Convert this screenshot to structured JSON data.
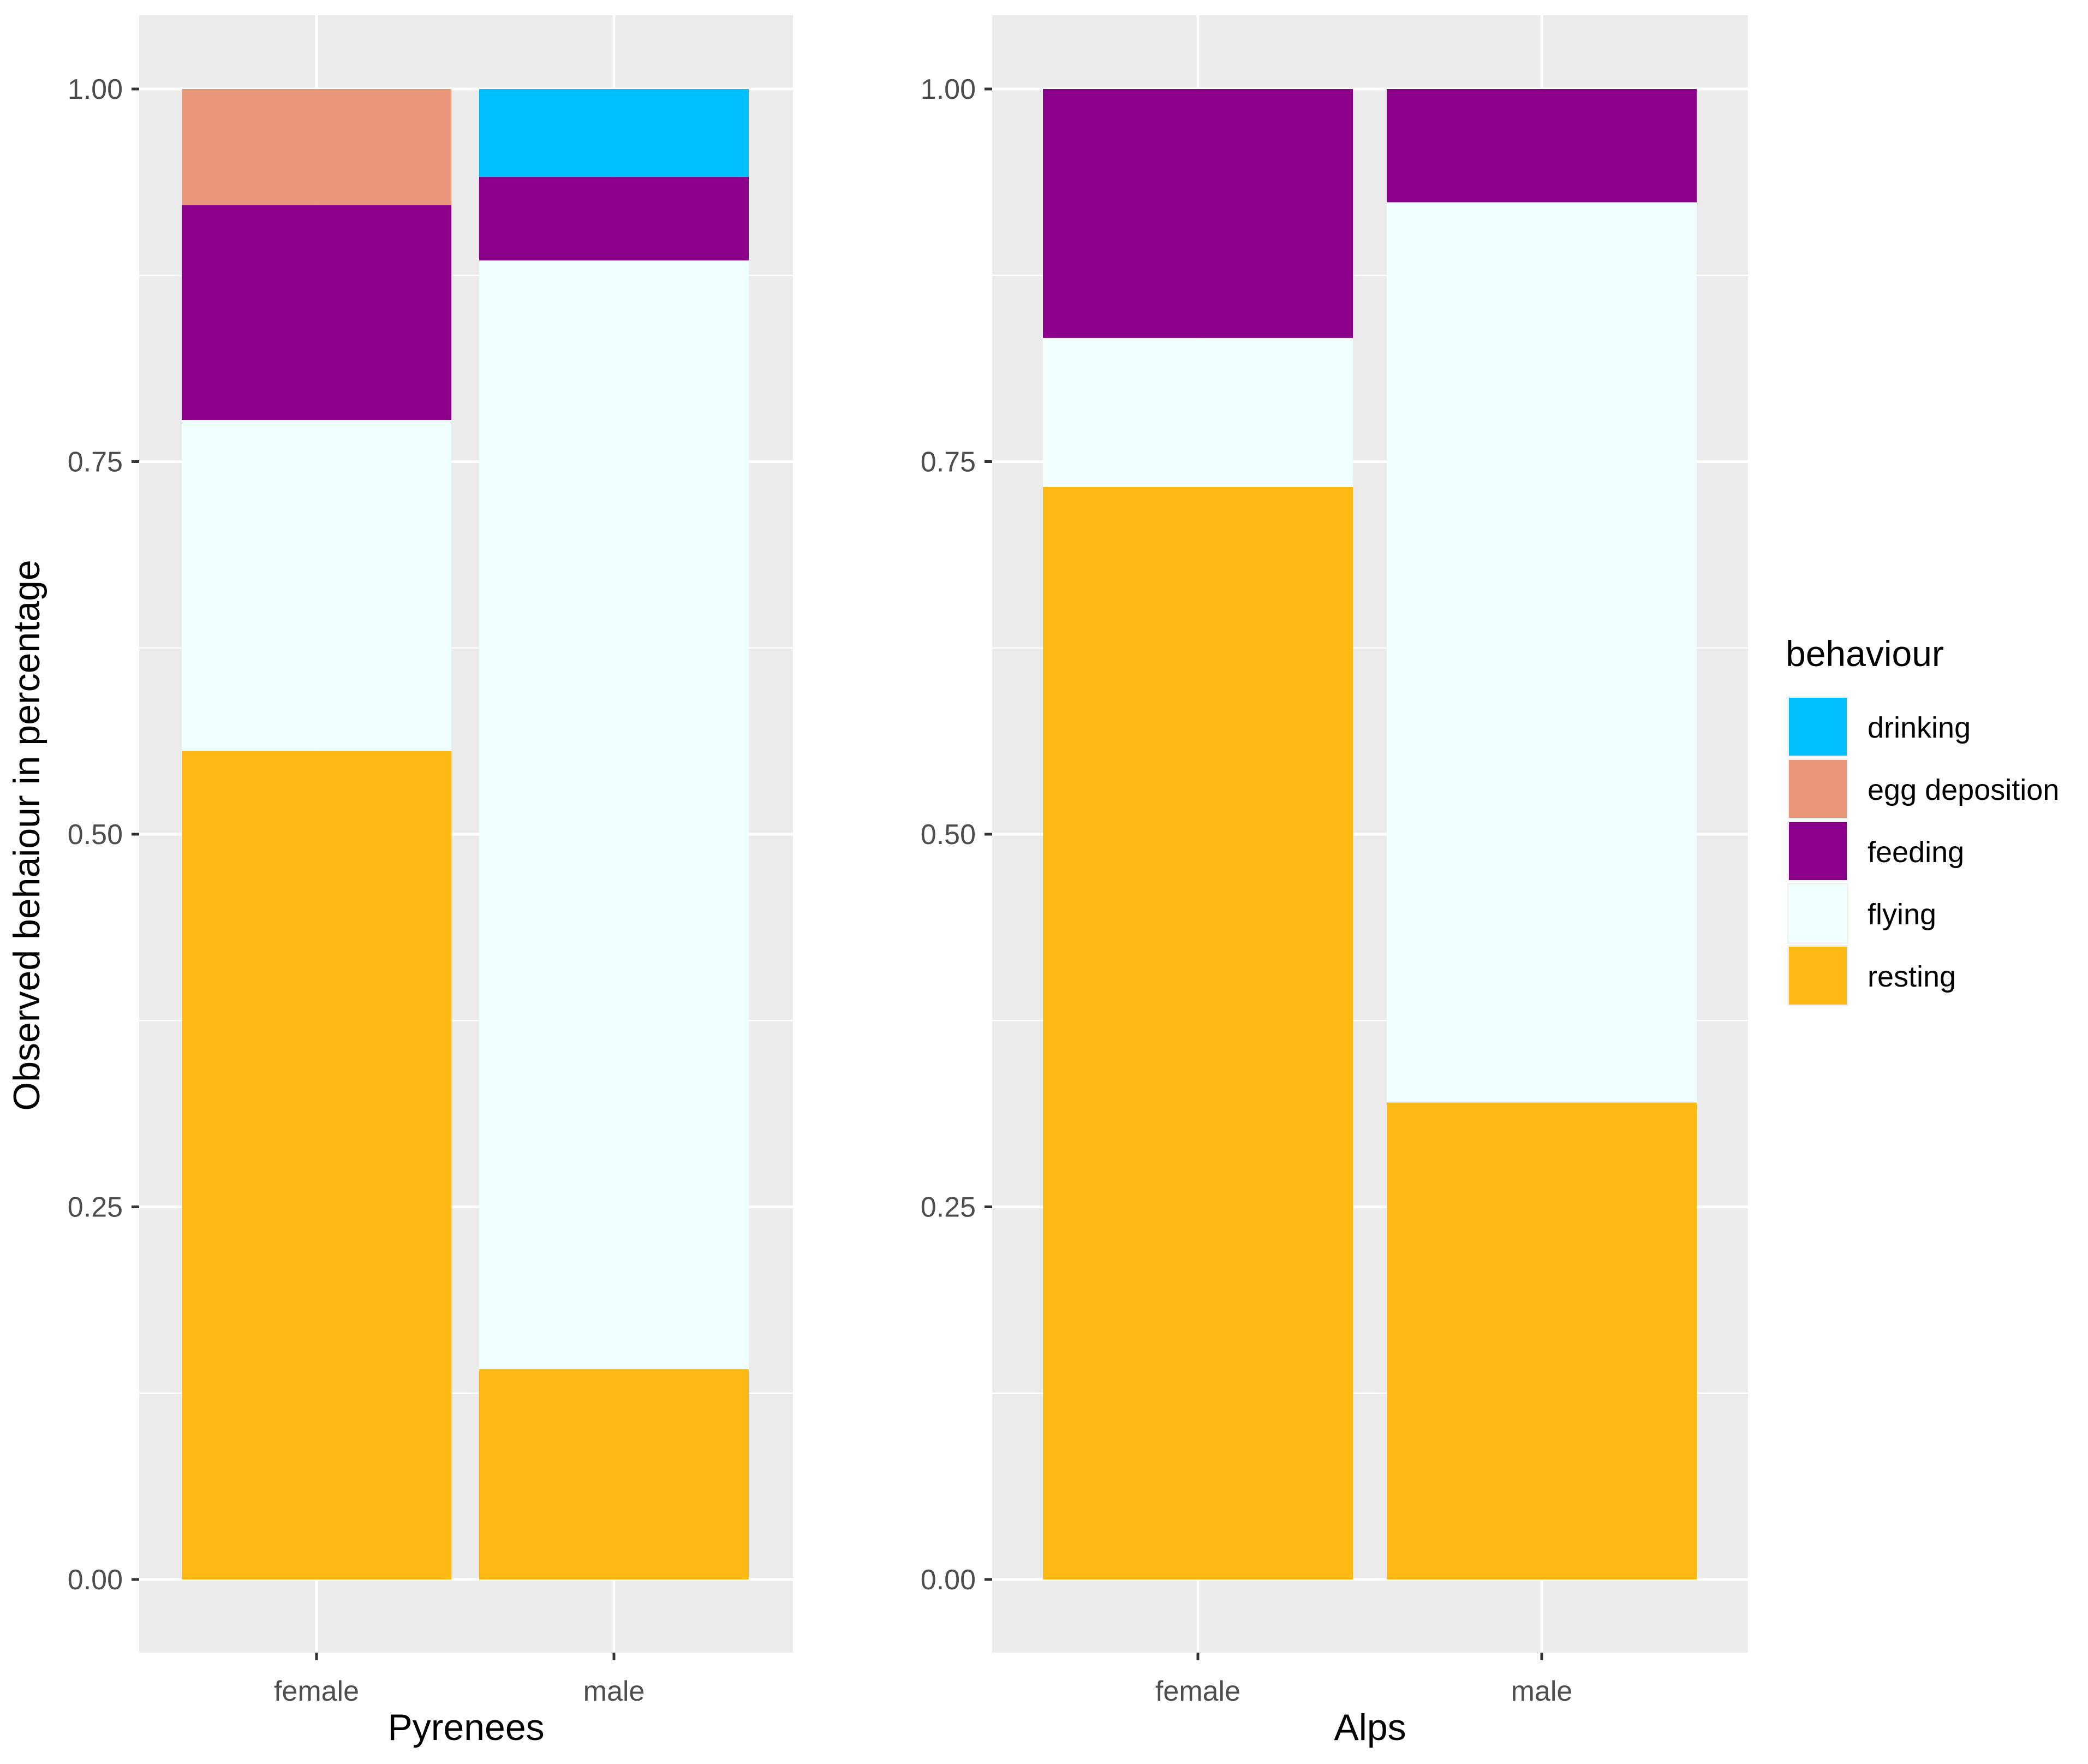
{
  "chart_data": {
    "type": "bar",
    "stacked": true,
    "ylabel": "Observed behaiour in percentage",
    "ylim": [
      -0.1,
      1.05
    ],
    "yticks": [
      "0.00",
      "0.25",
      "0.50",
      "0.75",
      "1.00"
    ],
    "legend": {
      "title": "behaviour",
      "position": "right",
      "entries": [
        "drinking",
        "egg deposition",
        "feeding",
        "flying",
        "resting"
      ]
    },
    "colors": {
      "drinking": "#00BFFF",
      "egg deposition": "#E9967A",
      "feeding": "#8B008B",
      "flying": "#F0FFFF",
      "resting": "#FDB813"
    },
    "panels": [
      {
        "xlabel": "Pyrenees",
        "categories": [
          "female",
          "male"
        ],
        "series": [
          {
            "name": "resting",
            "values": [
              0.556,
              0.141
            ]
          },
          {
            "name": "flying",
            "values": [
              0.222,
              0.744
            ]
          },
          {
            "name": "feeding",
            "values": [
              0.144,
              0.056
            ]
          },
          {
            "name": "egg deposition",
            "values": [
              0.078,
              0
            ]
          },
          {
            "name": "drinking",
            "values": [
              0,
              0.059
            ]
          }
        ]
      },
      {
        "xlabel": "Alps",
        "categories": [
          "female",
          "male"
        ],
        "series": [
          {
            "name": "resting",
            "values": [
              0.733,
              0.32
            ]
          },
          {
            "name": "flying",
            "values": [
              0.1,
              0.604
            ]
          },
          {
            "name": "feeding",
            "values": [
              0.167,
              0.076
            ]
          },
          {
            "name": "egg deposition",
            "values": [
              0,
              0
            ]
          },
          {
            "name": "drinking",
            "values": [
              0,
              0
            ]
          }
        ]
      }
    ]
  }
}
